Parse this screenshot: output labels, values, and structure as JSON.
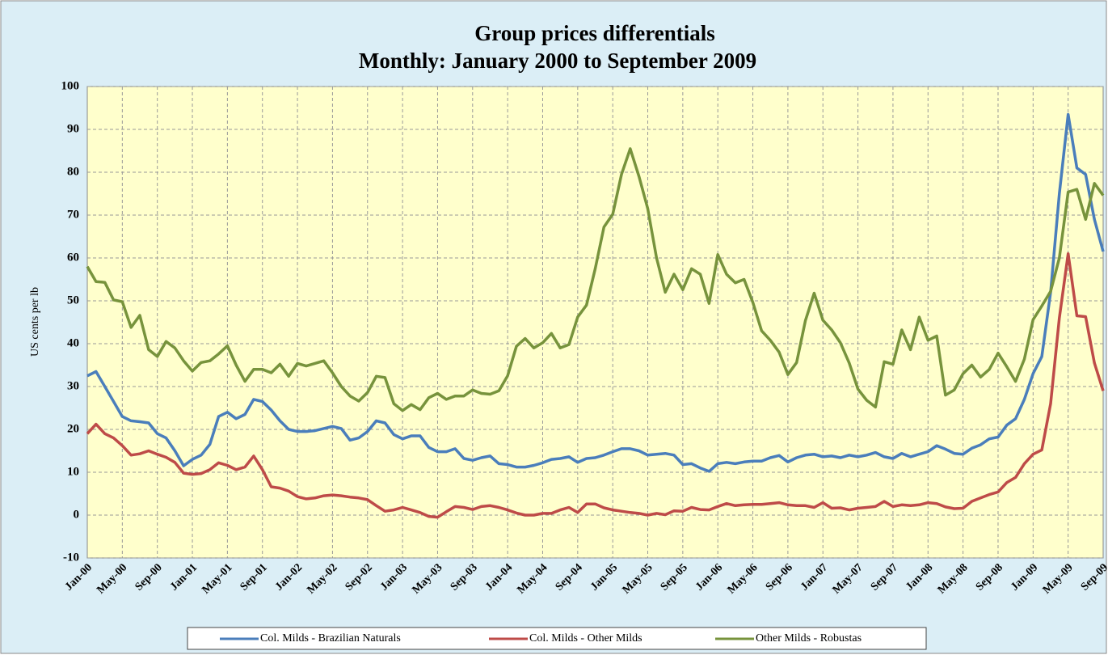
{
  "chart_data": {
    "type": "line",
    "title": "Group prices differentials",
    "subtitle": "Monthly:  January 2000 to September 2009",
    "y_label": "US cents per lb",
    "categories": [
      "Jan-00",
      null,
      null,
      null,
      "May-00",
      null,
      null,
      null,
      "Sep-00",
      null,
      null,
      null,
      "Jan-01",
      null,
      null,
      null,
      "May-01",
      null,
      null,
      null,
      "Sep-01",
      null,
      null,
      null,
      "Jan-02",
      null,
      null,
      null,
      "May-02",
      null,
      null,
      null,
      "Sep-02",
      null,
      null,
      null,
      "Jan-03",
      null,
      null,
      null,
      "May-03",
      null,
      null,
      null,
      "Sep-03",
      null,
      null,
      null,
      "Jan-04",
      null,
      null,
      null,
      "May-04",
      null,
      null,
      null,
      "Sep-04",
      null,
      null,
      null,
      "Jan-05",
      null,
      null,
      null,
      "May-05",
      null,
      null,
      null,
      "Sep-05",
      null,
      null,
      null,
      "Jan-06",
      null,
      null,
      null,
      "May-06",
      null,
      null,
      null,
      "Sep-06",
      null,
      null,
      null,
      "Jan-07",
      null,
      null,
      null,
      "May-07",
      null,
      null,
      null,
      "Sep-07",
      null,
      null,
      null,
      "Jan-08",
      null,
      null,
      null,
      "May-08",
      null,
      null,
      null,
      "Sep-08",
      null,
      null,
      null,
      "Jan-09",
      null,
      null,
      null,
      "May-09",
      null,
      null,
      null,
      "Sep-09"
    ],
    "series": [
      {
        "name": "Col. Milds - Brazilian Naturals",
        "color": "#4a7ebb",
        "values": [
          32.5,
          33.5,
          30,
          26.5,
          23,
          22,
          21.8,
          21.5,
          19,
          18,
          15,
          11.5,
          13,
          14,
          16.5,
          23,
          24,
          22.5,
          23.5,
          27,
          26.5,
          24.5,
          22,
          20,
          19.5,
          19.5,
          19.7,
          20.2,
          20.7,
          20.2,
          17.5,
          18,
          19.5,
          22,
          21.5,
          18.8,
          17.8,
          18.5,
          18.5,
          15.8,
          14.8,
          14.8,
          15.5,
          13.2,
          12.8,
          13.4,
          13.8,
          12,
          11.8,
          11.2,
          11.2,
          11.6,
          12.2,
          13,
          13.2,
          13.6,
          12.3,
          13.2,
          13.4,
          14,
          14.8,
          15.5,
          15.5,
          15,
          14,
          14.2,
          14.4,
          14,
          11.8,
          12,
          11,
          10.2,
          12,
          12.3,
          12,
          12.4,
          12.6,
          12.6,
          13.4,
          13.9,
          12.4,
          13.4,
          14,
          14.2,
          13.6,
          13.8,
          13.4,
          14,
          13.6,
          14,
          14.6,
          13.6,
          13.2,
          14.4,
          13.6,
          14.2,
          14.8,
          16.2,
          15.4,
          14.4,
          14.2,
          15.6,
          16.4,
          17.8,
          18.2,
          21,
          22.5,
          27,
          33,
          37,
          52,
          75,
          93.5,
          81,
          79.5,
          69,
          61.5
        ]
      },
      {
        "name": "Col. Milds - Other Milds",
        "color": "#be4b48",
        "values": [
          19,
          21.2,
          19,
          18,
          16.2,
          14,
          14.3,
          15,
          14.2,
          13.5,
          12.3,
          9.8,
          9.5,
          9.7,
          10.6,
          12.2,
          11.6,
          10.6,
          11.2,
          13.8,
          10.6,
          6.6,
          6.3,
          5.6,
          4.3,
          3.8,
          4,
          4.5,
          4.7,
          4.5,
          4.2,
          4,
          3.6,
          2.2,
          0.9,
          1.2,
          1.8,
          1.2,
          0.6,
          -0.3,
          -0.5,
          0.8,
          2,
          1.8,
          1.3,
          2,
          2.2,
          1.8,
          1.2,
          0.5,
          0,
          0,
          0.4,
          0.4,
          1.2,
          1.8,
          0.6,
          2.6,
          2.6,
          1.7,
          1.2,
          0.9,
          0.6,
          0.4,
          0,
          0.4,
          0.1,
          1,
          0.9,
          1.8,
          1.3,
          1.2,
          2,
          2.7,
          2.2,
          2.4,
          2.5,
          2.5,
          2.7,
          2.9,
          2.4,
          2.2,
          2.2,
          1.8,
          2.9,
          1.6,
          1.7,
          1.2,
          1.6,
          1.8,
          2,
          3.2,
          2,
          2.4,
          2.2,
          2.4,
          2.9,
          2.7,
          1.9,
          1.5,
          1.6,
          3.2,
          4,
          4.8,
          5.4,
          7.6,
          8.8,
          12,
          14.2,
          15.2,
          26,
          46,
          61,
          46.5,
          46.3,
          35.5,
          29
        ]
      },
      {
        "name": "Other Milds - Robustas",
        "color": "#77933c",
        "values": [
          58,
          54.5,
          54.3,
          50.2,
          49.8,
          43.8,
          46.6,
          38.6,
          37,
          40.5,
          39,
          36,
          33.6,
          35.6,
          36,
          37.6,
          39.5,
          35,
          31.2,
          34,
          34,
          33.2,
          35.2,
          32.4,
          35.4,
          34.8,
          35.4,
          36,
          33.2,
          30,
          27.8,
          26.6,
          28.6,
          32.4,
          32.1,
          26,
          24.4,
          25.8,
          24.6,
          27.4,
          28.4,
          27,
          27.8,
          27.8,
          29.2,
          28.4,
          28.2,
          29,
          32.5,
          39.4,
          41.2,
          39,
          40.2,
          42.4,
          39,
          39.8,
          46.2,
          49,
          57.5,
          67.2,
          70.2,
          79.5,
          85.5,
          79,
          71.5,
          60,
          52,
          56.2,
          52.6,
          57.5,
          56.2,
          49.4,
          60.8,
          56.2,
          54.2,
          55,
          49.6,
          43,
          40.8,
          38,
          32.8,
          35.6,
          45.4,
          51.8,
          45.5,
          43.2,
          40.2,
          35.5,
          29.4,
          26.8,
          25.2,
          35.8,
          35.2,
          43.2,
          38.6,
          46.2,
          40.8,
          41.8,
          28,
          29.2,
          33,
          35,
          32.2,
          34,
          37.8,
          34.6,
          31.2,
          36.4,
          45.6,
          48.8,
          52.2,
          60,
          75.4,
          76,
          69,
          77.4,
          74.6
        ]
      }
    ],
    "ylim": [
      -10,
      100
    ],
    "yticks": [
      -10,
      0,
      10,
      20,
      30,
      40,
      50,
      60,
      70,
      80,
      90,
      100
    ],
    "grid": true,
    "legend": "bottom"
  }
}
